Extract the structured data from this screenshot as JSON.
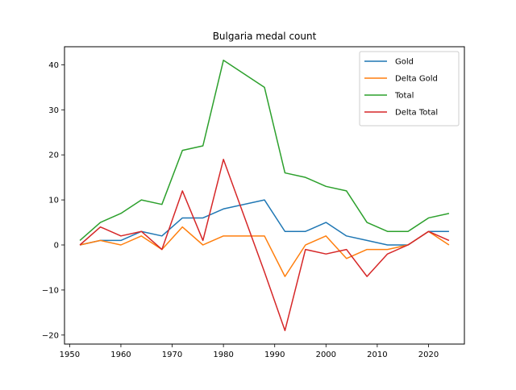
{
  "chart_data": {
    "type": "line",
    "title": "Bulgaria medal count",
    "xlabel": "",
    "ylabel": "",
    "xlim": [
      1949,
      2027
    ],
    "ylim": [
      -22,
      44
    ],
    "xticks": [
      1950,
      1960,
      1970,
      1980,
      1990,
      2000,
      2010,
      2020
    ],
    "yticks": [
      -20,
      -10,
      0,
      10,
      20,
      30,
      40
    ],
    "legend_position": "top-right",
    "grid": false,
    "x": [
      1952,
      1956,
      1960,
      1964,
      1968,
      1972,
      1976,
      1980,
      1988,
      1992,
      1996,
      2000,
      2004,
      2008,
      2012,
      2016,
      2020,
      2024
    ],
    "series": [
      {
        "name": "Gold",
        "color": "#1f77b4",
        "values": [
          0,
          1,
          1,
          3,
          2,
          6,
          6,
          8,
          10,
          3,
          3,
          5,
          2,
          1,
          0,
          0,
          3,
          3
        ]
      },
      {
        "name": "Delta Gold",
        "color": "#ff7f0e",
        "values": [
          0,
          1,
          0,
          2,
          -1,
          4,
          0,
          2,
          2,
          -7,
          0,
          2,
          -3,
          -1,
          -1,
          0,
          3,
          0
        ]
      },
      {
        "name": "Total",
        "color": "#2ca02c",
        "values": [
          1,
          5,
          7,
          10,
          9,
          21,
          22,
          41,
          35,
          16,
          15,
          13,
          12,
          5,
          3,
          3,
          6,
          7
        ]
      },
      {
        "name": "Delta Total",
        "color": "#d62728",
        "values": [
          0,
          4,
          2,
          3,
          -1,
          12,
          1,
          19,
          -6,
          -19,
          -1,
          -2,
          -1,
          -7,
          -2,
          0,
          3,
          1
        ]
      }
    ]
  }
}
